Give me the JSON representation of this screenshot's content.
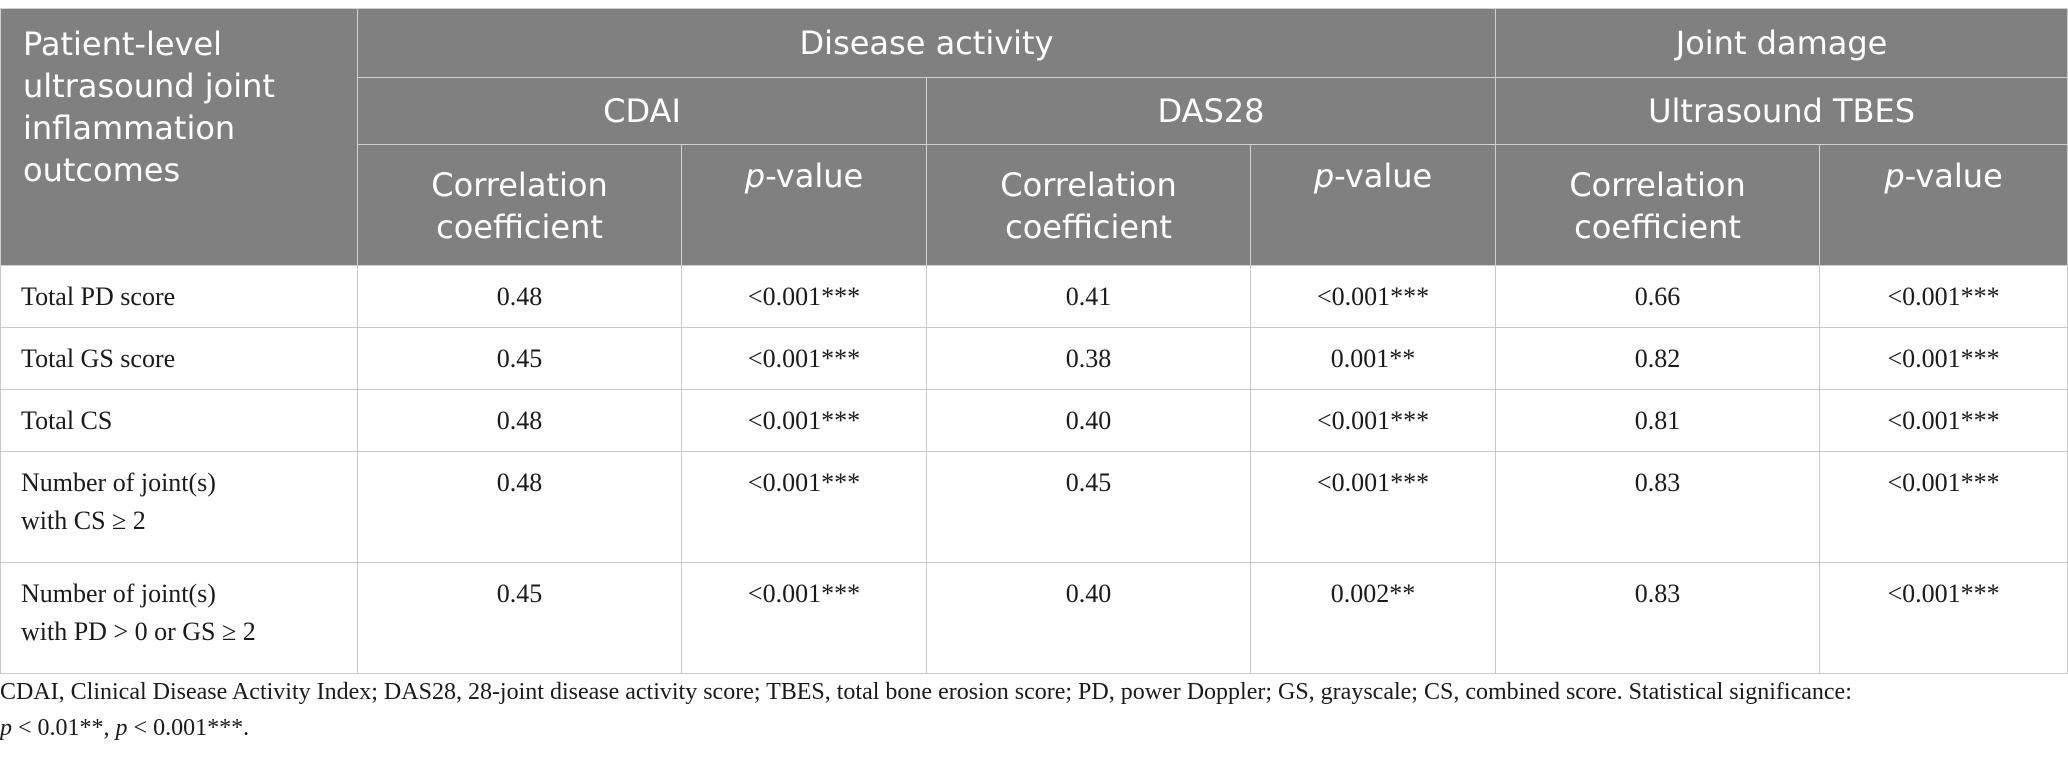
{
  "table": {
    "stub_header": "Patient-level ultrasound joint inflammation outcomes",
    "groups": {
      "disease_activity": "Disease activity",
      "joint_damage": "Joint damage"
    },
    "measures": {
      "cdai": "CDAI",
      "das28": "DAS28",
      "tbes": "Ultrasound TBES"
    },
    "subheaders": {
      "correlation": "Correlation coefficient",
      "p_italic": "p",
      "p_rest": "-value"
    },
    "rows": [
      {
        "label_line1": "Total PD score",
        "label_line2": "",
        "cdai_r": "0.48",
        "cdai_p": "<0.001***",
        "das28_r": "0.41",
        "das28_p": "<0.001***",
        "tbes_r": "0.66",
        "tbes_p": "<0.001***"
      },
      {
        "label_line1": "Total GS score",
        "label_line2": "",
        "cdai_r": "0.45",
        "cdai_p": "<0.001***",
        "das28_r": "0.38",
        "das28_p": "0.001**",
        "tbes_r": "0.82",
        "tbes_p": "<0.001***"
      },
      {
        "label_line1": "Total CS",
        "label_line2": "",
        "cdai_r": "0.48",
        "cdai_p": "<0.001***",
        "das28_r": "0.40",
        "das28_p": "<0.001***",
        "tbes_r": "0.81",
        "tbes_p": "<0.001***"
      },
      {
        "label_line1": "Number of joint(s)",
        "label_line2": "with CS ≥ 2",
        "cdai_r": "0.48",
        "cdai_p": "<0.001***",
        "das28_r": "0.45",
        "das28_p": "<0.001***",
        "tbes_r": "0.83",
        "tbes_p": "<0.001***"
      },
      {
        "label_line1": "Number of joint(s)",
        "label_line2": "with PD > 0 or GS ≥ 2",
        "cdai_r": "0.45",
        "cdai_p": "<0.001***",
        "das28_r": "0.40",
        "das28_p": "0.002**",
        "tbes_r": "0.83",
        "tbes_p": "<0.001***"
      }
    ]
  },
  "footnote": {
    "main": "CDAI, Clinical Disease Activity Index; DAS28, 28-joint disease activity score; TBES, total bone erosion score; PD, power Doppler; GS, grayscale; CS, combined score. Statistical significance:",
    "p_symbol": "p",
    "sig1": " < 0.01**, ",
    "sig2": " < 0.001***."
  }
}
